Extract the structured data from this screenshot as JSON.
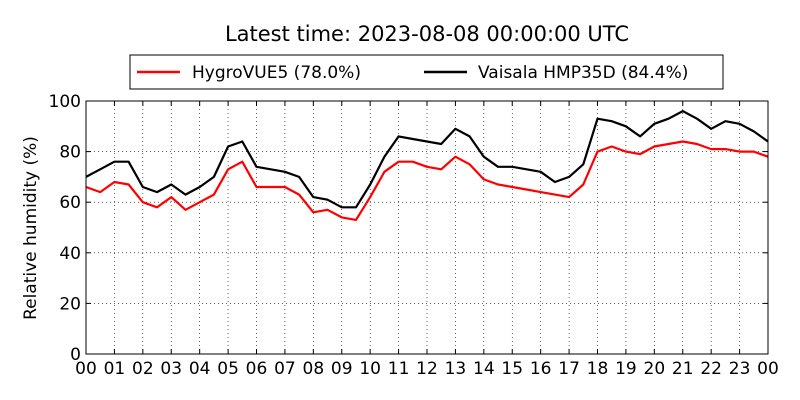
{
  "chart_data": {
    "type": "line",
    "title": "Latest time: 2023-08-08 00:00:00 UTC",
    "xlabel": "",
    "ylabel": "Relative humidity (%)",
    "ylim": [
      0,
      100
    ],
    "yticks": [
      "0",
      "20",
      "40",
      "60",
      "80",
      "100"
    ],
    "xlim": [
      0,
      24
    ],
    "xticks": [
      "00",
      "01",
      "02",
      "03",
      "04",
      "05",
      "06",
      "07",
      "08",
      "09",
      "10",
      "11",
      "12",
      "13",
      "14",
      "15",
      "16",
      "17",
      "18",
      "19",
      "20",
      "21",
      "22",
      "23",
      "00"
    ],
    "grid": true,
    "legend": "top-center-outside",
    "series": [
      {
        "name": "HygroVUE5 (78.0%)",
        "color": "#ff0000",
        "x": [
          0,
          0.5,
          1,
          1.5,
          2,
          2.5,
          3,
          3.5,
          4,
          4.5,
          5,
          5.5,
          6,
          6.5,
          7,
          7.5,
          8,
          8.5,
          9,
          9.5,
          10,
          10.5,
          11,
          11.5,
          12,
          12.5,
          13,
          13.5,
          14,
          14.5,
          15,
          15.5,
          16,
          16.5,
          17,
          17.5,
          18,
          18.5,
          19,
          19.5,
          20,
          20.5,
          21,
          21.5,
          22,
          22.5,
          23,
          23.5,
          24
        ],
        "y": [
          66,
          64,
          68,
          67,
          60,
          58,
          62,
          57,
          60,
          63,
          73,
          76,
          66,
          66,
          66,
          63,
          56,
          57,
          54,
          53,
          62,
          72,
          76,
          76,
          74,
          73,
          78,
          75,
          69,
          67,
          66,
          65,
          64,
          63,
          62,
          67,
          80,
          82,
          80,
          79,
          82,
          83,
          84,
          83,
          81,
          81,
          80,
          80,
          78
        ]
      },
      {
        "name": "Vaisala HMP35D (84.4%)",
        "color": "#000000",
        "x": [
          0,
          0.5,
          1,
          1.5,
          2,
          2.5,
          3,
          3.5,
          4,
          4.5,
          5,
          5.5,
          6,
          6.5,
          7,
          7.5,
          8,
          8.5,
          9,
          9.5,
          10,
          10.5,
          11,
          11.5,
          12,
          12.5,
          13,
          13.5,
          14,
          14.5,
          15,
          15.5,
          16,
          16.5,
          17,
          17.5,
          18,
          18.5,
          19,
          19.5,
          20,
          20.5,
          21,
          21.5,
          22,
          22.5,
          23,
          23.5,
          24
        ],
        "y": [
          70,
          73,
          76,
          76,
          66,
          64,
          67,
          63,
          66,
          70,
          82,
          84,
          74,
          73,
          72,
          70,
          62,
          61,
          58,
          58,
          67,
          78,
          86,
          85,
          84,
          83,
          89,
          86,
          78,
          74,
          74,
          73,
          72,
          68,
          70,
          75,
          93,
          92,
          90,
          86,
          91,
          93,
          96,
          93,
          89,
          92,
          91,
          88,
          84
        ]
      }
    ]
  }
}
